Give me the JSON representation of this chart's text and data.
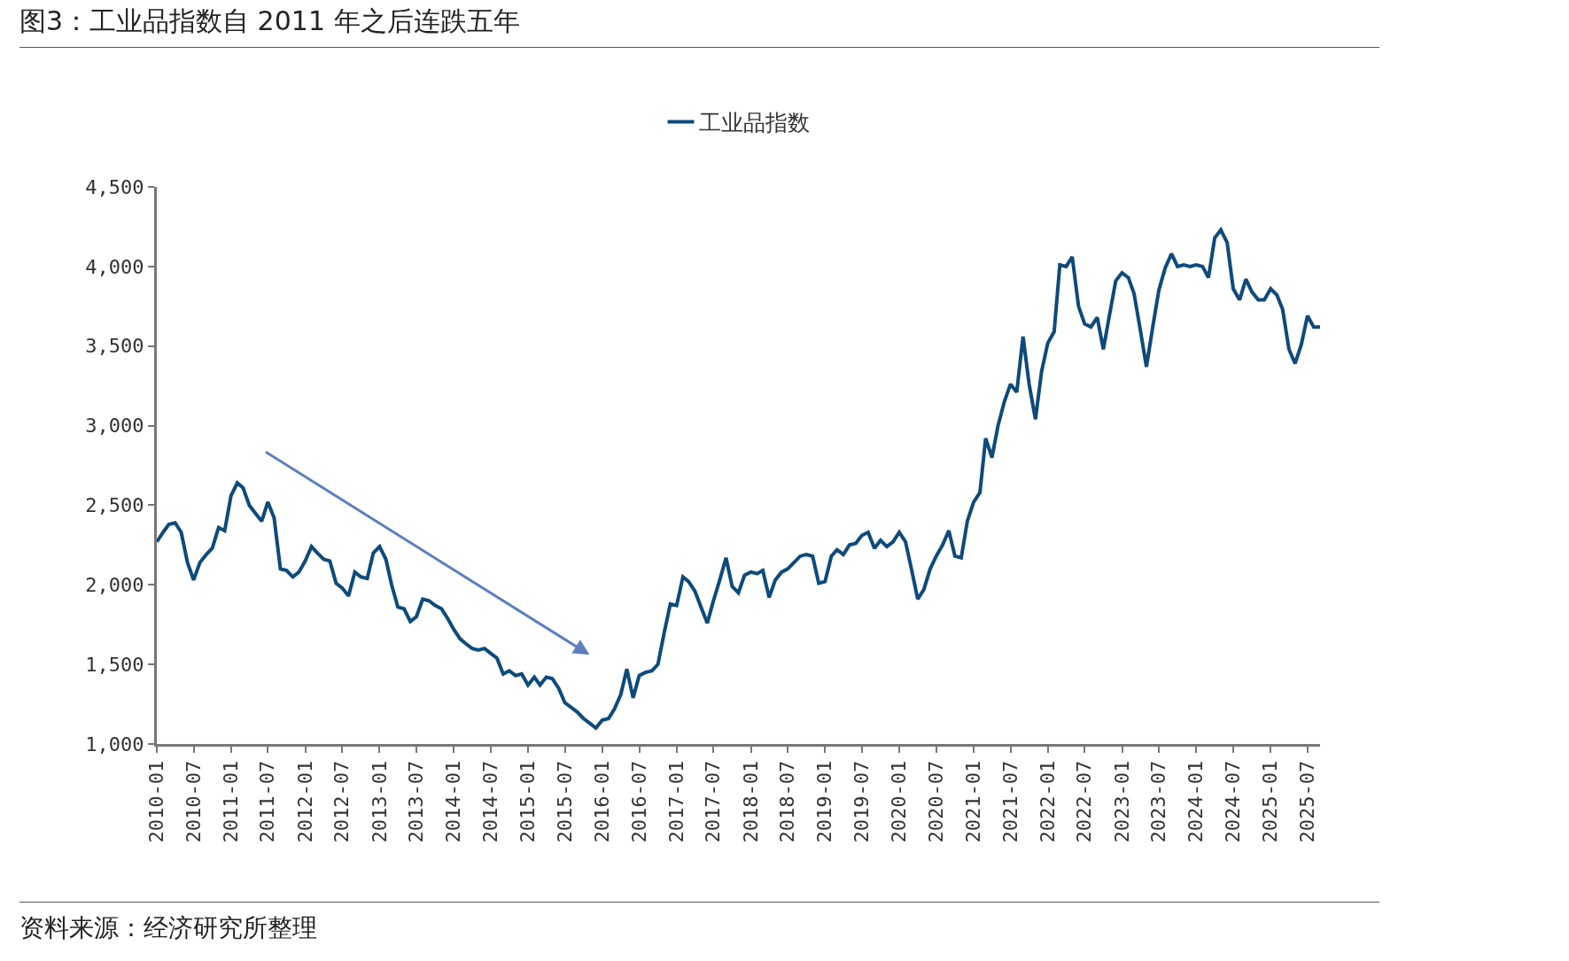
{
  "chart_data": {
    "type": "line",
    "title": "图3：工业品指数自 2011 年之后连跌五年",
    "annotations": [
      "资料来源：经济研究所整理"
    ],
    "legend": "top",
    "grid": false,
    "marker": "none",
    "line_style": "solid",
    "ylim": [
      1000,
      4500
    ],
    "yticks": [
      {
        "value": 1000,
        "label": "1,000"
      },
      {
        "value": 1500,
        "label": "1,500"
      },
      {
        "value": 2000,
        "label": "2,000"
      },
      {
        "value": 2500,
        "label": "2,500"
      },
      {
        "value": 3000,
        "label": "3,000"
      },
      {
        "value": 3500,
        "label": "3,500"
      },
      {
        "value": 4000,
        "label": "4,000"
      },
      {
        "value": 4500,
        "label": "4,500"
      }
    ],
    "xlim": [
      "2010-01",
      "2025-09"
    ],
    "xticks": [
      "2010-01",
      "2010-07",
      "2011-01",
      "2011-07",
      "2012-01",
      "2012-07",
      "2013-01",
      "2013-07",
      "2014-01",
      "2014-07",
      "2015-01",
      "2015-07",
      "2016-01",
      "2016-07",
      "2017-01",
      "2017-07",
      "2018-01",
      "2018-07",
      "2019-01",
      "2019-07",
      "2020-01",
      "2020-07",
      "2021-01",
      "2021-07",
      "2022-01",
      "2022-07",
      "2023-01",
      "2023-07",
      "2024-01",
      "2024-07",
      "2025-01",
      "2025-07"
    ],
    "x": [
      "2010-01",
      "2010-02",
      "2010-03",
      "2010-04",
      "2010-05",
      "2010-06",
      "2010-07",
      "2010-08",
      "2010-09",
      "2010-10",
      "2010-11",
      "2010-12",
      "2011-01",
      "2011-02",
      "2011-03",
      "2011-04",
      "2011-05",
      "2011-06",
      "2011-07",
      "2011-08",
      "2011-09",
      "2011-10",
      "2011-11",
      "2011-12",
      "2012-01",
      "2012-02",
      "2012-03",
      "2012-04",
      "2012-05",
      "2012-06",
      "2012-07",
      "2012-08",
      "2012-09",
      "2012-10",
      "2012-11",
      "2012-12",
      "2013-01",
      "2013-02",
      "2013-03",
      "2013-04",
      "2013-05",
      "2013-06",
      "2013-07",
      "2013-08",
      "2013-09",
      "2013-10",
      "2013-11",
      "2013-12",
      "2014-01",
      "2014-02",
      "2014-03",
      "2014-04",
      "2014-05",
      "2014-06",
      "2014-07",
      "2014-08",
      "2014-09",
      "2014-10",
      "2014-11",
      "2014-12",
      "2015-01",
      "2015-02",
      "2015-03",
      "2015-04",
      "2015-05",
      "2015-06",
      "2015-07",
      "2015-08",
      "2015-09",
      "2015-10",
      "2015-11",
      "2015-12",
      "2016-01",
      "2016-02",
      "2016-03",
      "2016-04",
      "2016-05",
      "2016-06",
      "2016-07",
      "2016-08",
      "2016-09",
      "2016-10",
      "2016-11",
      "2016-12",
      "2017-01",
      "2017-02",
      "2017-03",
      "2017-04",
      "2017-05",
      "2017-06",
      "2017-07",
      "2017-08",
      "2017-09",
      "2017-10",
      "2017-11",
      "2017-12",
      "2018-01",
      "2018-02",
      "2018-03",
      "2018-04",
      "2018-05",
      "2018-06",
      "2018-07",
      "2018-08",
      "2018-09",
      "2018-10",
      "2018-11",
      "2018-12",
      "2019-01",
      "2019-02",
      "2019-03",
      "2019-04",
      "2019-05",
      "2019-06",
      "2019-07",
      "2019-08",
      "2019-09",
      "2019-10",
      "2019-11",
      "2019-12",
      "2020-01",
      "2020-02",
      "2020-03",
      "2020-04",
      "2020-05",
      "2020-06",
      "2020-07",
      "2020-08",
      "2020-09",
      "2020-10",
      "2020-11",
      "2020-12",
      "2021-01",
      "2021-02",
      "2021-03",
      "2021-04",
      "2021-05",
      "2021-06",
      "2021-07",
      "2021-08",
      "2021-09",
      "2021-10",
      "2021-11",
      "2021-12",
      "2022-01",
      "2022-02",
      "2022-03",
      "2022-04",
      "2022-05",
      "2022-06",
      "2022-07",
      "2022-08",
      "2022-09",
      "2022-10",
      "2022-11",
      "2022-12",
      "2023-01",
      "2023-02",
      "2023-03",
      "2023-04",
      "2023-05",
      "2023-06",
      "2023-07",
      "2023-08",
      "2023-09",
      "2023-10",
      "2023-11",
      "2023-12",
      "2024-01",
      "2024-02",
      "2024-03",
      "2024-04",
      "2024-05",
      "2024-06",
      "2024-07",
      "2024-08",
      "2024-09",
      "2024-10",
      "2024-11",
      "2024-12",
      "2025-01",
      "2025-02",
      "2025-03",
      "2025-04",
      "2025-05",
      "2025-06",
      "2025-07",
      "2025-08",
      "2025-09"
    ],
    "series": [
      {
        "name": "工业品指数",
        "color": "#0e4a7b",
        "values": [
          2270,
          2330,
          2380,
          2390,
          2330,
          2140,
          2030,
          2140,
          2190,
          2230,
          2360,
          2340,
          2560,
          2640,
          2610,
          2500,
          2450,
          2400,
          2520,
          2420,
          2100,
          2090,
          2050,
          2080,
          2150,
          2240,
          2200,
          2160,
          2150,
          2010,
          1980,
          1930,
          2080,
          2050,
          2040,
          2200,
          2240,
          2160,
          2000,
          1860,
          1850,
          1770,
          1800,
          1910,
          1900,
          1870,
          1850,
          1790,
          1720,
          1660,
          1630,
          1600,
          1590,
          1600,
          1570,
          1540,
          1440,
          1460,
          1430,
          1440,
          1370,
          1420,
          1370,
          1420,
          1410,
          1350,
          1260,
          1230,
          1200,
          1160,
          1130,
          1100,
          1150,
          1160,
          1220,
          1310,
          1470,
          1290,
          1430,
          1450,
          1460,
          1500,
          1700,
          1880,
          1870,
          2050,
          2020,
          1960,
          1860,
          1760,
          1900,
          2030,
          2170,
          1990,
          1950,
          2060,
          2080,
          2070,
          2090,
          1920,
          2030,
          2080,
          2100,
          2140,
          2180,
          2190,
          2180,
          2010,
          2020,
          2180,
          2220,
          2190,
          2250,
          2260,
          2310,
          2330,
          2230,
          2280,
          2240,
          2270,
          2330,
          2270,
          2100,
          1910,
          1970,
          2100,
          2180,
          2250,
          2340,
          2180,
          2170,
          2400,
          2520,
          2580,
          2920,
          2800,
          3000,
          3150,
          3260,
          3210,
          3560,
          3260,
          3040,
          3340,
          3520,
          3590,
          4010,
          4000,
          4060,
          3750,
          3640,
          3620,
          3680,
          3480,
          3700,
          3910,
          3960,
          3930,
          3830,
          3600,
          3370,
          3620,
          3850,
          3990,
          4080,
          4000,
          4010,
          4000,
          4010,
          4000,
          3930,
          4180,
          4230,
          4150,
          3860,
          3790,
          3920,
          3840,
          3790,
          3790,
          3860,
          3820,
          3730,
          3480,
          3390,
          3510,
          3690,
          3620,
          3620
        ]
      }
    ]
  }
}
